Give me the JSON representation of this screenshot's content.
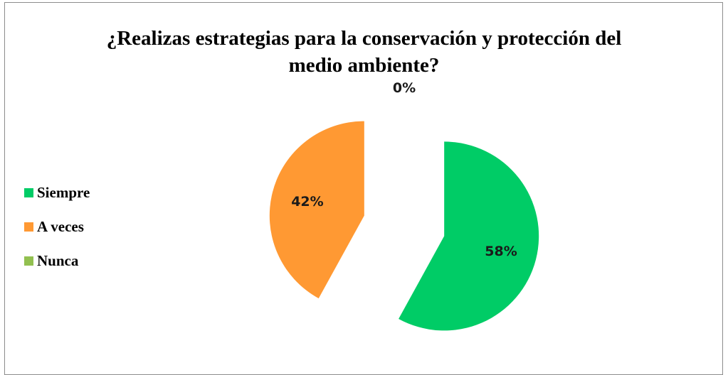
{
  "chart_data": {
    "type": "pie",
    "title_lines": [
      "¿Realizas estrategias para la conservación y protección del",
      "medio ambiente?"
    ],
    "categories": [
      "Siempre",
      "A veces",
      "Nunca"
    ],
    "values": [
      58,
      42,
      0
    ],
    "data_labels": [
      "58%",
      "42%",
      "0%"
    ],
    "colors": [
      "#00cc66",
      "#ff9933",
      "#92c050"
    ],
    "exploded": true,
    "legend_position": "left"
  }
}
